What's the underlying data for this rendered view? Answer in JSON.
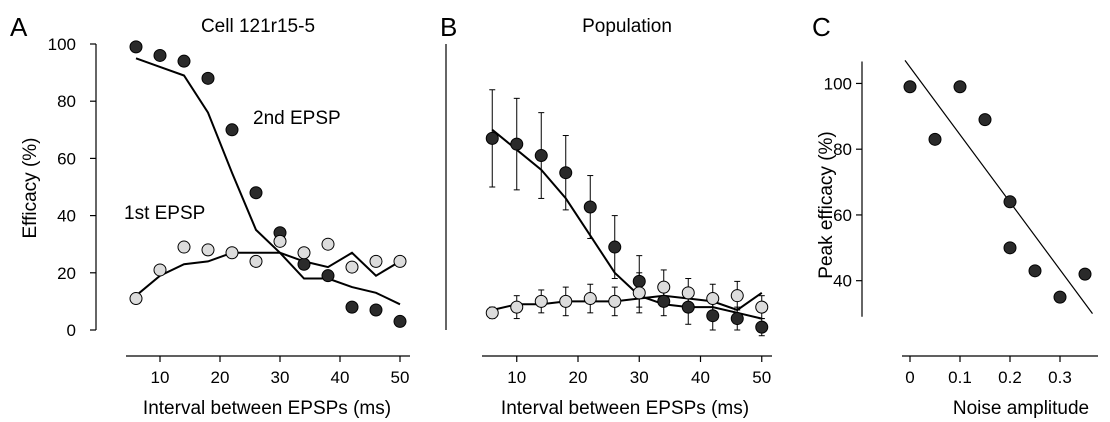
{
  "chart_data": [
    {
      "panel": "A",
      "type": "scatter",
      "title": "Cell 121r15-5",
      "xlabel": "Interval between EPSPs (ms)",
      "ylabel": "Efficacy (%)",
      "xlim": [
        4,
        52
      ],
      "ylim": [
        0,
        100
      ],
      "xticks": [
        10,
        20,
        30,
        40,
        50
      ],
      "yticks": [
        0,
        20,
        40,
        60,
        80,
        100
      ],
      "annotations": [
        "2nd EPSP",
        "1st EPSP"
      ],
      "series": [
        {
          "label_ref": "2nd EPSP",
          "marker": "filled",
          "x": [
            6,
            10,
            14,
            18,
            22,
            26,
            30,
            34,
            38,
            42,
            46,
            50
          ],
          "y": [
            99,
            96,
            94,
            88,
            70,
            48,
            34,
            23,
            19,
            8,
            7,
            3
          ]
        },
        {
          "label_ref": "2nd EPSP fit",
          "style": "line",
          "x": [
            6,
            10,
            14,
            18,
            22,
            26,
            30,
            34,
            38,
            42,
            46,
            50
          ],
          "y": [
            95,
            92,
            89,
            76,
            55,
            35,
            27,
            18,
            18,
            15,
            13,
            9
          ]
        },
        {
          "label_ref": "1st EPSP",
          "marker": "open",
          "x": [
            6,
            10,
            14,
            18,
            22,
            26,
            30,
            34,
            38,
            42,
            46,
            50
          ],
          "y": [
            11,
            21,
            29,
            28,
            27,
            24,
            31,
            27,
            30,
            22,
            24,
            24
          ]
        },
        {
          "label_ref": "1st EPSP fit",
          "style": "line",
          "x": [
            6,
            10,
            14,
            18,
            22,
            26,
            30,
            34,
            38,
            42,
            46,
            50
          ],
          "y": [
            12,
            19,
            23,
            24,
            27,
            27,
            27,
            24,
            22,
            27,
            19,
            24
          ]
        }
      ]
    },
    {
      "panel": "B",
      "type": "scatter",
      "title": "Population",
      "xlabel": "Interval between EPSPs (ms)",
      "ylabel": "",
      "xlim": [
        4,
        52
      ],
      "ylim": [
        0,
        100
      ],
      "xticks": [
        10,
        20,
        30,
        40,
        50
      ],
      "yticks": [],
      "series": [
        {
          "marker": "filled",
          "x": [
            6,
            10,
            14,
            18,
            22,
            26,
            30,
            34,
            38,
            42,
            46,
            50
          ],
          "y": [
            67,
            65,
            61,
            55,
            43,
            29,
            17,
            10,
            8,
            5,
            4,
            1
          ],
          "err": [
            17,
            16,
            15,
            13,
            11,
            11,
            9,
            5,
            6,
            5,
            4,
            3
          ]
        },
        {
          "style": "line",
          "x": [
            6,
            10,
            14,
            18,
            22,
            26,
            30,
            34,
            38,
            42,
            46,
            50
          ],
          "y": [
            70,
            63,
            56,
            46,
            33,
            20,
            12,
            9,
            8,
            8,
            6,
            4
          ]
        },
        {
          "marker": "open",
          "x": [
            6,
            10,
            14,
            18,
            22,
            26,
            30,
            34,
            38,
            42,
            46,
            50
          ],
          "y": [
            6,
            8,
            10,
            10,
            11,
            10,
            13,
            15,
            13,
            11,
            12,
            8
          ],
          "err": [
            2,
            4,
            4,
            5,
            5,
            5,
            7,
            6,
            5,
            5,
            5,
            4
          ]
        },
        {
          "style": "line",
          "x": [
            6,
            10,
            14,
            18,
            22,
            26,
            30,
            34,
            38,
            42,
            46,
            50
          ],
          "y": [
            7,
            9,
            9,
            10,
            10,
            10,
            11,
            12,
            11,
            10,
            7,
            13
          ]
        }
      ]
    },
    {
      "panel": "C",
      "type": "scatter",
      "title": "",
      "xlabel": "Noise amplitude",
      "ylabel": "Peak efficacy (%)",
      "xlim": [
        -0.02,
        0.38
      ],
      "ylim": [
        25,
        112
      ],
      "xticks": [
        0,
        0.1,
        0.2,
        0.3
      ],
      "xtick_labels": [
        "0",
        "0.1",
        "0.2",
        "0.3"
      ],
      "yticks": [
        40,
        60,
        80,
        100
      ],
      "series": [
        {
          "marker": "filled",
          "x": [
            0,
            0.05,
            0.1,
            0.15,
            0.2,
            0.2,
            0.25,
            0.3,
            0.35
          ],
          "y": [
            99,
            83,
            99,
            89,
            64,
            50,
            43,
            35,
            42
          ]
        },
        {
          "style": "fit-line",
          "x": [
            -0.01,
            0.365
          ],
          "y": [
            107,
            30
          ]
        }
      ]
    }
  ],
  "panels": {
    "a": {
      "letter": "A",
      "title": "Cell 121r15-5",
      "xlabel": "Interval between EPSPs (ms)",
      "ylabel": "Efficacy (%)",
      "annot_2nd": "2nd EPSP",
      "annot_1st": "1st EPSP"
    },
    "b": {
      "letter": "B",
      "title": "Population",
      "xlabel": "Interval between EPSPs (ms)"
    },
    "c": {
      "letter": "C",
      "xlabel": "Noise amplitude",
      "ylabel": "Peak efficacy (%)"
    }
  },
  "colors": {
    "filled_marker": "#2a2a2a",
    "open_marker": "#dcdcdc",
    "line": "#000000"
  }
}
